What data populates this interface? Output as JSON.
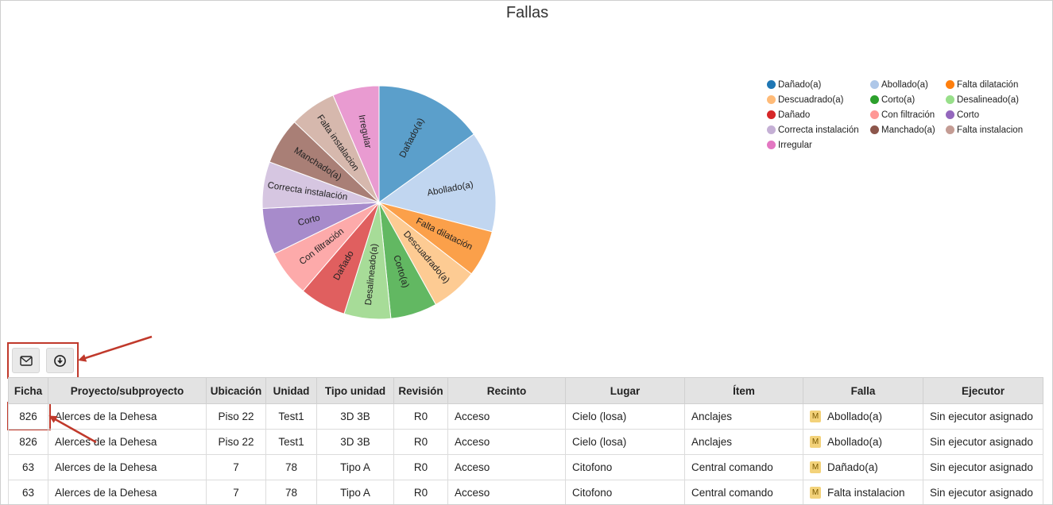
{
  "chart_data": {
    "type": "pie",
    "title": "Fallas",
    "legend_position": "top-right",
    "slices": [
      {
        "label": "Dañado(a)",
        "value": 14,
        "color": "#5b9fcb"
      },
      {
        "label": "Abollado(a)",
        "value": 13,
        "color": "#c1d6f0"
      },
      {
        "label": "Falta dilatación",
        "value": 6,
        "color": "#fba04a"
      },
      {
        "label": "Descuadrado(a)",
        "value": 6,
        "color": "#fdcb93"
      },
      {
        "label": "Corto(a)",
        "value": 6,
        "color": "#62b862"
      },
      {
        "label": "Desalineado(a)",
        "value": 6,
        "color": "#a7dc98"
      },
      {
        "label": "Dañado",
        "value": 6,
        "color": "#e05f5f"
      },
      {
        "label": "Con filtración",
        "value": 6,
        "color": "#fdaaaa"
      },
      {
        "label": "Corto",
        "value": 6,
        "color": "#a78bcb"
      },
      {
        "label": "Correcta instalación",
        "value": 6,
        "color": "#d6c6e1"
      },
      {
        "label": "Manchado(a)",
        "value": 6,
        "color": "#a97f76"
      },
      {
        "label": "Falta instalacion",
        "value": 6,
        "color": "#d6b8ad"
      },
      {
        "label": "Irregular",
        "value": 6,
        "color": "#e99bd1"
      }
    ]
  },
  "legend": [
    {
      "label": "Dañado(a)",
      "color": "#1f77b4"
    },
    {
      "label": "Abollado(a)",
      "color": "#aec7e8"
    },
    {
      "label": "Falta dilatación",
      "color": "#ff7f0e"
    },
    {
      "label": "Descuadrado(a)",
      "color": "#ffbb78"
    },
    {
      "label": "Corto(a)",
      "color": "#2ca02c"
    },
    {
      "label": "Desalineado(a)",
      "color": "#98df8a"
    },
    {
      "label": "Dañado",
      "color": "#d62728"
    },
    {
      "label": "Con filtración",
      "color": "#ff9896"
    },
    {
      "label": "Corto",
      "color": "#9467bd"
    },
    {
      "label": "Correcta instalación",
      "color": "#c5b0d5"
    },
    {
      "label": "Manchado(a)",
      "color": "#8c564b"
    },
    {
      "label": "Falta instalacion",
      "color": "#c49c94"
    },
    {
      "label": "Irregular",
      "color": "#e377c2"
    }
  ],
  "toolbar": {
    "email_icon": "envelope-icon",
    "download_icon": "download-circle-icon"
  },
  "table": {
    "headers": [
      "Ficha",
      "Proyecto/subproyecto",
      "Ubicación",
      "Unidad",
      "Tipo unidad",
      "Revisión",
      "Recinto",
      "Lugar",
      "Ítem",
      "Falla",
      "Ejecutor"
    ],
    "badge_letter": "M",
    "rows": [
      {
        "ficha": "826",
        "proyecto": "Alerces de la Dehesa",
        "ubicacion": "Piso 22",
        "unidad": "Test1",
        "tipo": "3D 3B",
        "revision": "R0",
        "recinto": "Acceso",
        "lugar": "Cielo (losa)",
        "item": "Anclajes",
        "falla": "Abollado(a)",
        "ejecutor": "Sin ejecutor asignado"
      },
      {
        "ficha": "826",
        "proyecto": "Alerces de la Dehesa",
        "ubicacion": "Piso 22",
        "unidad": "Test1",
        "tipo": "3D 3B",
        "revision": "R0",
        "recinto": "Acceso",
        "lugar": "Cielo (losa)",
        "item": "Anclajes",
        "falla": "Abollado(a)",
        "ejecutor": "Sin ejecutor asignado"
      },
      {
        "ficha": "63",
        "proyecto": "Alerces de la Dehesa",
        "ubicacion": "7",
        "unidad": "78",
        "tipo": "Tipo A",
        "revision": "R0",
        "recinto": "Acceso",
        "lugar": "Citofono",
        "item": "Central comando",
        "falla": "Dañado(a)",
        "ejecutor": "Sin ejecutor asignado"
      },
      {
        "ficha": "63",
        "proyecto": "Alerces de la Dehesa",
        "ubicacion": "7",
        "unidad": "78",
        "tipo": "Tipo A",
        "revision": "R0",
        "recinto": "Acceso",
        "lugar": "Citofono",
        "item": "Central comando",
        "falla": "Falta instalacion",
        "ejecutor": "Sin ejecutor asignado"
      }
    ]
  }
}
